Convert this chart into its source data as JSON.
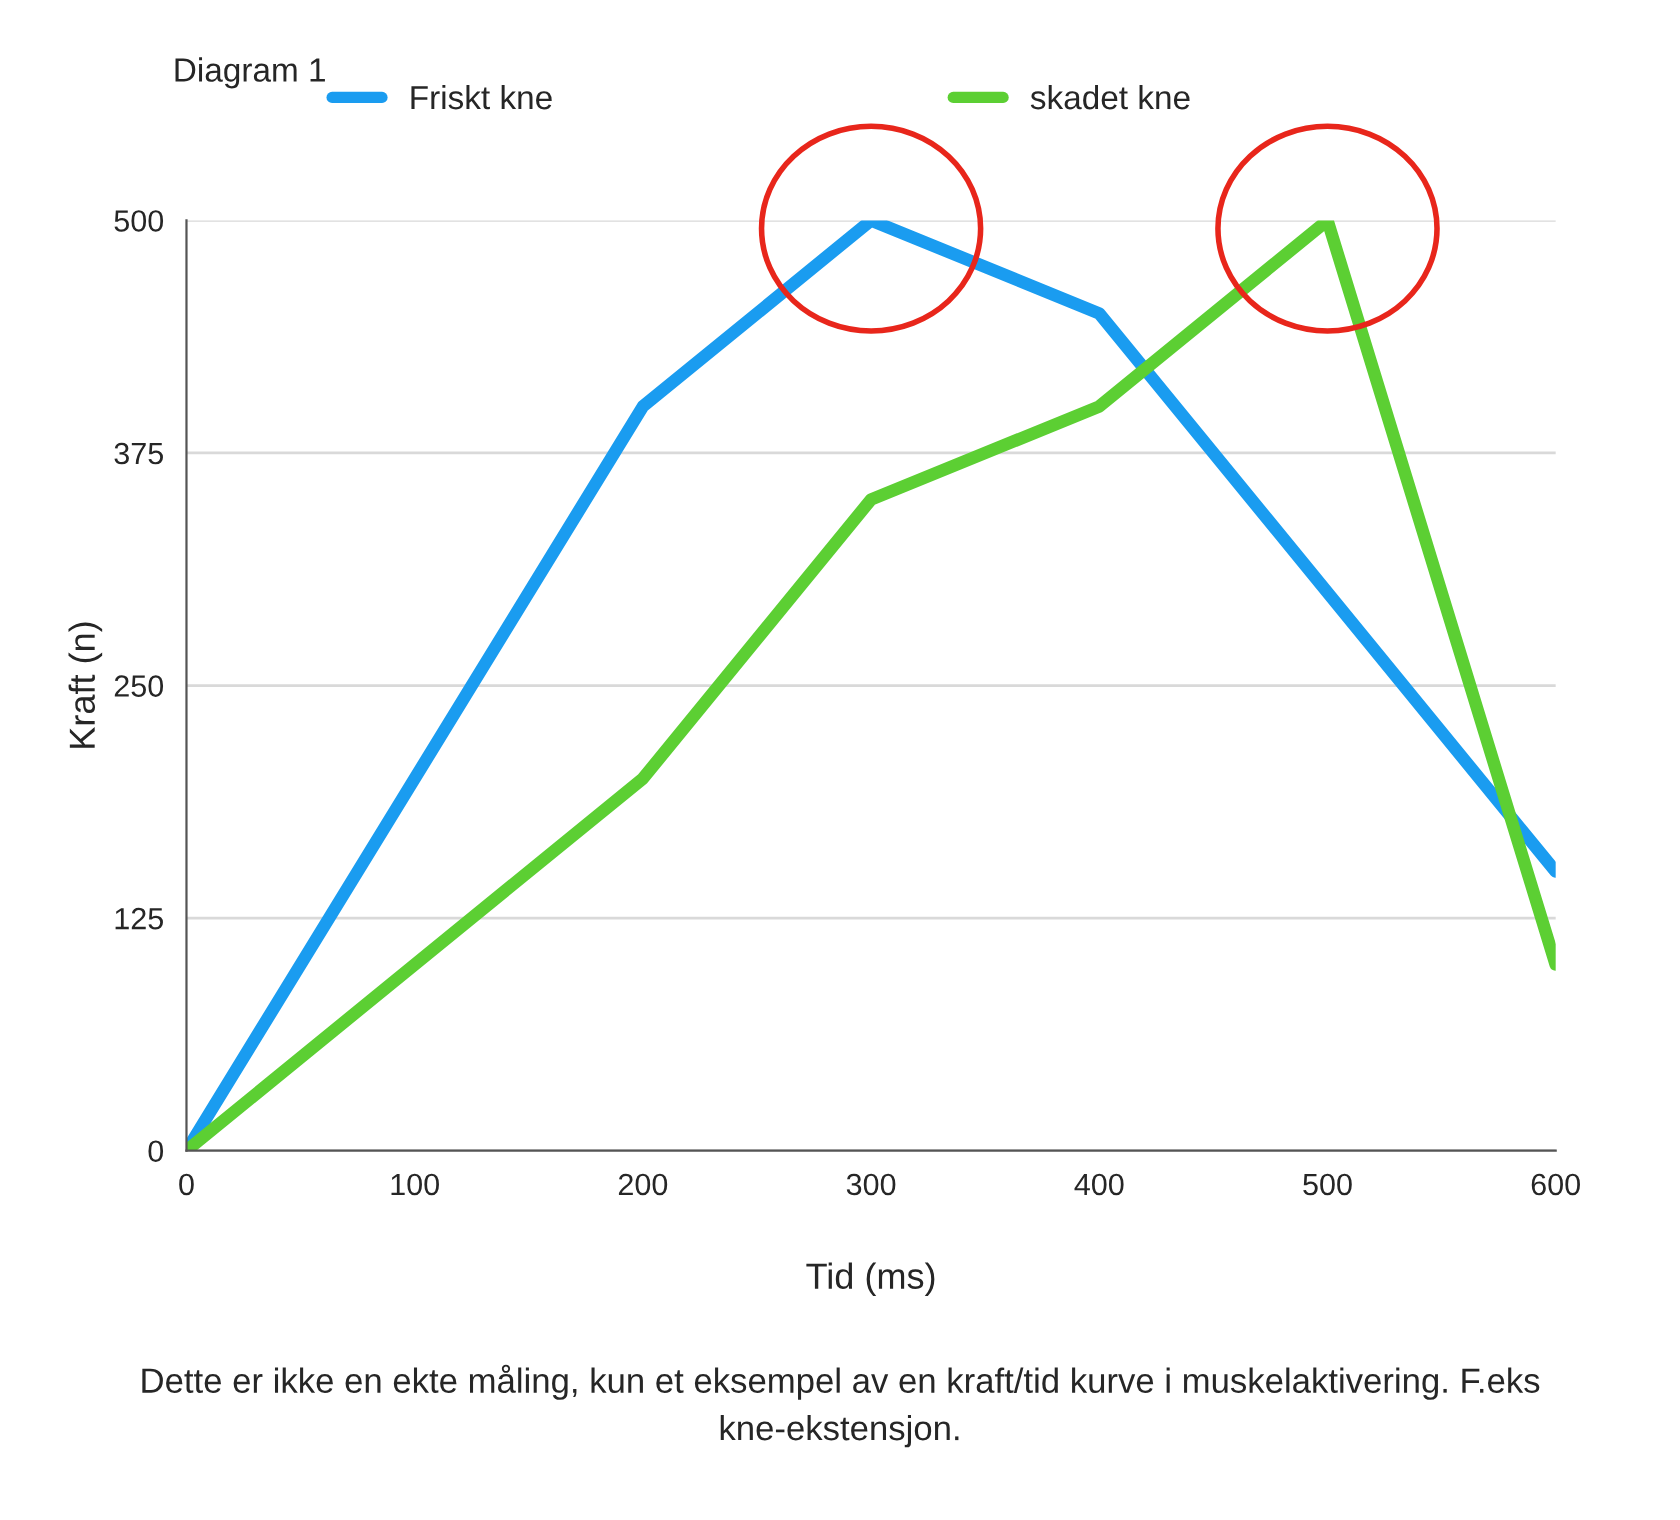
{
  "chart_data": {
    "type": "line",
    "title": "Diagram 1",
    "xlabel": "Tid (ms)",
    "ylabel": "Kraft (n)",
    "series": [
      {
        "name": "Friskt kne",
        "color": "#1a9cf0",
        "x": [
          0,
          200,
          300,
          400,
          600
        ],
        "values": [
          0,
          400,
          500,
          450,
          150
        ]
      },
      {
        "name": "skadet kne",
        "color": "#5ccf33",
        "x": [
          0,
          200,
          300,
          400,
          500,
          600
        ],
        "values": [
          0,
          200,
          350,
          400,
          500,
          100
        ]
      }
    ],
    "xlim": [
      0,
      600
    ],
    "xticks": [
      0,
      100,
      200,
      300,
      400,
      500,
      600
    ],
    "ylim": [
      0,
      500
    ],
    "yticks": [
      0,
      125,
      250,
      375,
      500
    ],
    "grid": "y",
    "legend": "top",
    "marker": "none",
    "line_style": "solid",
    "annotations": [
      "Dette er ikke en ekte måling, kun et eksempel av en kraft/tid kurve i muskelaktivering. F.eks kne-ekstensjon."
    ]
  }
}
